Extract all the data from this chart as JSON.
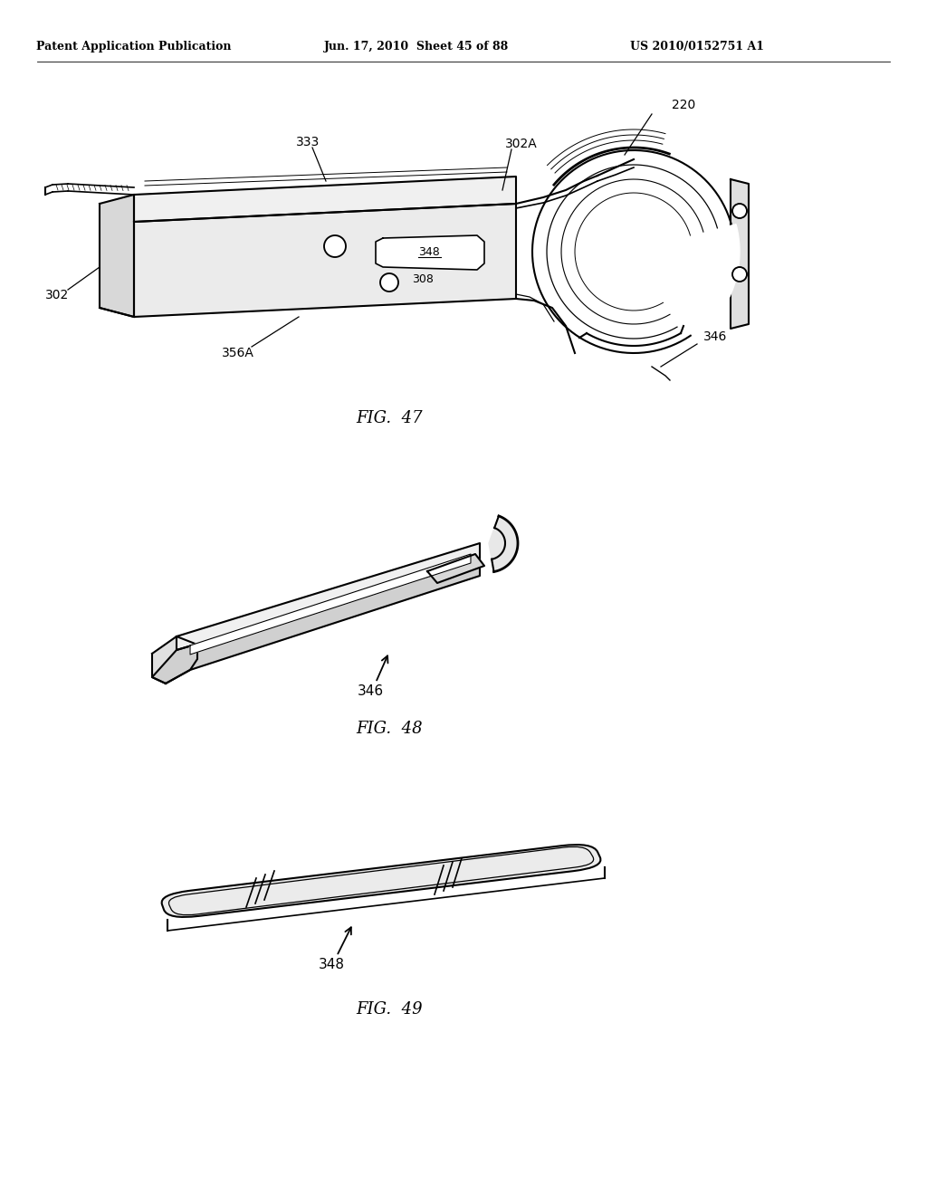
{
  "bg_color": "#ffffff",
  "header_left": "Patent Application Publication",
  "header_center": "Jun. 17, 2010  Sheet 45 of 88",
  "header_right": "US 2010/0152751 A1",
  "fig47_title": "FIG.  47",
  "fig48_title": "FIG.  48",
  "fig49_title": "FIG.  49",
  "label_302": "302",
  "label_302A": "302A",
  "label_333": "333",
  "label_220": "220",
  "label_348_inside": "348",
  "label_308": "308",
  "label_356A": "356A",
  "label_346a": "346",
  "label_346b": "346",
  "label_348b": "348",
  "lc": "#000000",
  "lw": 1.5
}
